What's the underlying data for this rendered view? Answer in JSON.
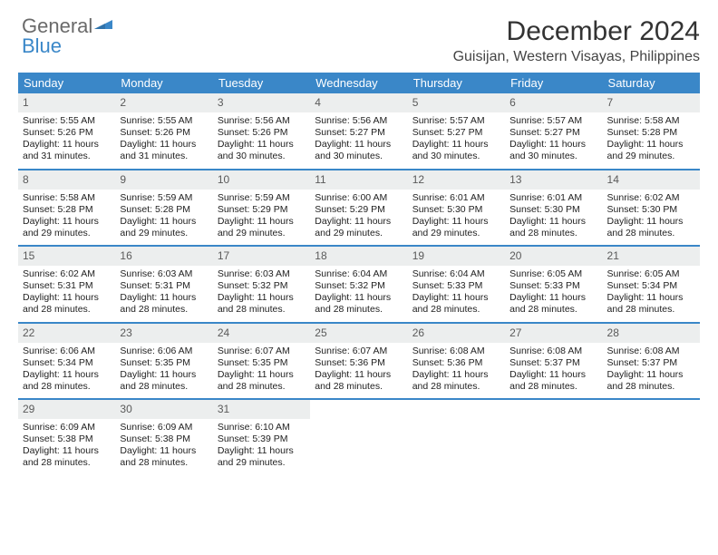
{
  "brand": {
    "part1": "General",
    "part2": "Blue"
  },
  "title": "December 2024",
  "subtitle": "Guisijan, Western Visayas, Philippines",
  "colors": {
    "headerBar": "#3a87c8",
    "dayNumBg": "#eceeee",
    "text": "#222222",
    "background": "#ffffff"
  },
  "dayNames": [
    "Sunday",
    "Monday",
    "Tuesday",
    "Wednesday",
    "Thursday",
    "Friday",
    "Saturday"
  ],
  "weeks": [
    [
      {
        "d": "1",
        "sr": "Sunrise: 5:55 AM",
        "ss": "Sunset: 5:26 PM",
        "dl1": "Daylight: 11 hours",
        "dl2": "and 31 minutes."
      },
      {
        "d": "2",
        "sr": "Sunrise: 5:55 AM",
        "ss": "Sunset: 5:26 PM",
        "dl1": "Daylight: 11 hours",
        "dl2": "and 31 minutes."
      },
      {
        "d": "3",
        "sr": "Sunrise: 5:56 AM",
        "ss": "Sunset: 5:26 PM",
        "dl1": "Daylight: 11 hours",
        "dl2": "and 30 minutes."
      },
      {
        "d": "4",
        "sr": "Sunrise: 5:56 AM",
        "ss": "Sunset: 5:27 PM",
        "dl1": "Daylight: 11 hours",
        "dl2": "and 30 minutes."
      },
      {
        "d": "5",
        "sr": "Sunrise: 5:57 AM",
        "ss": "Sunset: 5:27 PM",
        "dl1": "Daylight: 11 hours",
        "dl2": "and 30 minutes."
      },
      {
        "d": "6",
        "sr": "Sunrise: 5:57 AM",
        "ss": "Sunset: 5:27 PM",
        "dl1": "Daylight: 11 hours",
        "dl2": "and 30 minutes."
      },
      {
        "d": "7",
        "sr": "Sunrise: 5:58 AM",
        "ss": "Sunset: 5:28 PM",
        "dl1": "Daylight: 11 hours",
        "dl2": "and 29 minutes."
      }
    ],
    [
      {
        "d": "8",
        "sr": "Sunrise: 5:58 AM",
        "ss": "Sunset: 5:28 PM",
        "dl1": "Daylight: 11 hours",
        "dl2": "and 29 minutes."
      },
      {
        "d": "9",
        "sr": "Sunrise: 5:59 AM",
        "ss": "Sunset: 5:28 PM",
        "dl1": "Daylight: 11 hours",
        "dl2": "and 29 minutes."
      },
      {
        "d": "10",
        "sr": "Sunrise: 5:59 AM",
        "ss": "Sunset: 5:29 PM",
        "dl1": "Daylight: 11 hours",
        "dl2": "and 29 minutes."
      },
      {
        "d": "11",
        "sr": "Sunrise: 6:00 AM",
        "ss": "Sunset: 5:29 PM",
        "dl1": "Daylight: 11 hours",
        "dl2": "and 29 minutes."
      },
      {
        "d": "12",
        "sr": "Sunrise: 6:01 AM",
        "ss": "Sunset: 5:30 PM",
        "dl1": "Daylight: 11 hours",
        "dl2": "and 29 minutes."
      },
      {
        "d": "13",
        "sr": "Sunrise: 6:01 AM",
        "ss": "Sunset: 5:30 PM",
        "dl1": "Daylight: 11 hours",
        "dl2": "and 28 minutes."
      },
      {
        "d": "14",
        "sr": "Sunrise: 6:02 AM",
        "ss": "Sunset: 5:30 PM",
        "dl1": "Daylight: 11 hours",
        "dl2": "and 28 minutes."
      }
    ],
    [
      {
        "d": "15",
        "sr": "Sunrise: 6:02 AM",
        "ss": "Sunset: 5:31 PM",
        "dl1": "Daylight: 11 hours",
        "dl2": "and 28 minutes."
      },
      {
        "d": "16",
        "sr": "Sunrise: 6:03 AM",
        "ss": "Sunset: 5:31 PM",
        "dl1": "Daylight: 11 hours",
        "dl2": "and 28 minutes."
      },
      {
        "d": "17",
        "sr": "Sunrise: 6:03 AM",
        "ss": "Sunset: 5:32 PM",
        "dl1": "Daylight: 11 hours",
        "dl2": "and 28 minutes."
      },
      {
        "d": "18",
        "sr": "Sunrise: 6:04 AM",
        "ss": "Sunset: 5:32 PM",
        "dl1": "Daylight: 11 hours",
        "dl2": "and 28 minutes."
      },
      {
        "d": "19",
        "sr": "Sunrise: 6:04 AM",
        "ss": "Sunset: 5:33 PM",
        "dl1": "Daylight: 11 hours",
        "dl2": "and 28 minutes."
      },
      {
        "d": "20",
        "sr": "Sunrise: 6:05 AM",
        "ss": "Sunset: 5:33 PM",
        "dl1": "Daylight: 11 hours",
        "dl2": "and 28 minutes."
      },
      {
        "d": "21",
        "sr": "Sunrise: 6:05 AM",
        "ss": "Sunset: 5:34 PM",
        "dl1": "Daylight: 11 hours",
        "dl2": "and 28 minutes."
      }
    ],
    [
      {
        "d": "22",
        "sr": "Sunrise: 6:06 AM",
        "ss": "Sunset: 5:34 PM",
        "dl1": "Daylight: 11 hours",
        "dl2": "and 28 minutes."
      },
      {
        "d": "23",
        "sr": "Sunrise: 6:06 AM",
        "ss": "Sunset: 5:35 PM",
        "dl1": "Daylight: 11 hours",
        "dl2": "and 28 minutes."
      },
      {
        "d": "24",
        "sr": "Sunrise: 6:07 AM",
        "ss": "Sunset: 5:35 PM",
        "dl1": "Daylight: 11 hours",
        "dl2": "and 28 minutes."
      },
      {
        "d": "25",
        "sr": "Sunrise: 6:07 AM",
        "ss": "Sunset: 5:36 PM",
        "dl1": "Daylight: 11 hours",
        "dl2": "and 28 minutes."
      },
      {
        "d": "26",
        "sr": "Sunrise: 6:08 AM",
        "ss": "Sunset: 5:36 PM",
        "dl1": "Daylight: 11 hours",
        "dl2": "and 28 minutes."
      },
      {
        "d": "27",
        "sr": "Sunrise: 6:08 AM",
        "ss": "Sunset: 5:37 PM",
        "dl1": "Daylight: 11 hours",
        "dl2": "and 28 minutes."
      },
      {
        "d": "28",
        "sr": "Sunrise: 6:08 AM",
        "ss": "Sunset: 5:37 PM",
        "dl1": "Daylight: 11 hours",
        "dl2": "and 28 minutes."
      }
    ],
    [
      {
        "d": "29",
        "sr": "Sunrise: 6:09 AM",
        "ss": "Sunset: 5:38 PM",
        "dl1": "Daylight: 11 hours",
        "dl2": "and 28 minutes."
      },
      {
        "d": "30",
        "sr": "Sunrise: 6:09 AM",
        "ss": "Sunset: 5:38 PM",
        "dl1": "Daylight: 11 hours",
        "dl2": "and 28 minutes."
      },
      {
        "d": "31",
        "sr": "Sunrise: 6:10 AM",
        "ss": "Sunset: 5:39 PM",
        "dl1": "Daylight: 11 hours",
        "dl2": "and 29 minutes."
      },
      null,
      null,
      null,
      null
    ]
  ]
}
